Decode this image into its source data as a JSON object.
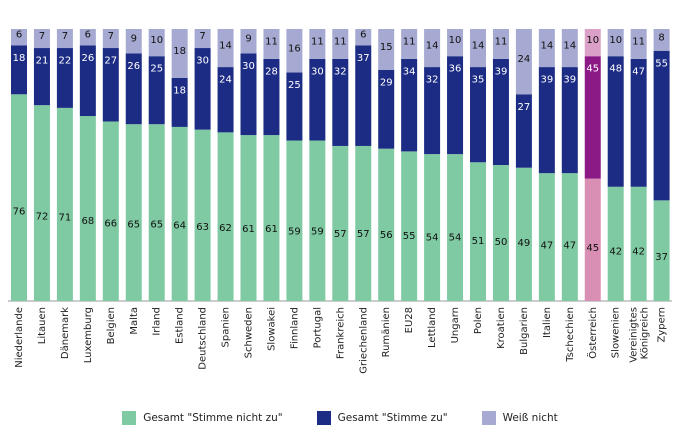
{
  "chart_data": {
    "type": "bar",
    "stacked": true,
    "orientation": "vertical",
    "categories": [
      "Niederlande",
      "Litauen",
      "Dänemark",
      "Luxemburg",
      "Belgien",
      "Malta",
      "Irland",
      "Estland",
      "Deutschland",
      "Spanien",
      "Schweden",
      "Slowakei",
      "Finnland",
      "Portugal",
      "Frankreich",
      "Griechenland",
      "Rumänien",
      "EU28",
      "Lettland",
      "Ungarn",
      "Polen",
      "Kroatien",
      "Bulgarien",
      "Italien",
      "Tschechien",
      "Österreich",
      "Slowenien",
      "Vereinigtes Königreich",
      "Zypern"
    ],
    "series": [
      {
        "name": "Gesamt \"Stimme nicht zu\"",
        "color": "#7fcaa3",
        "highlight_color": "#d98fb3",
        "values": [
          76,
          72,
          71,
          68,
          66,
          65,
          65,
          64,
          63,
          62,
          61,
          61,
          59,
          59,
          57,
          57,
          56,
          55,
          54,
          54,
          51,
          50,
          49,
          47,
          47,
          45,
          42,
          42,
          37
        ]
      },
      {
        "name": "Gesamt \"Stimme zu\"",
        "color": "#1c2c85",
        "highlight_color": "#8b1a86",
        "values": [
          18,
          21,
          22,
          26,
          27,
          26,
          25,
          18,
          30,
          24,
          30,
          28,
          25,
          30,
          32,
          37,
          29,
          34,
          32,
          36,
          35,
          39,
          27,
          39,
          39,
          45,
          48,
          47,
          55
        ]
      },
      {
        "name": "Weiß nicht",
        "color": "#a6a9d1",
        "highlight_color": "#dba0c7",
        "values": [
          6,
          7,
          7,
          6,
          7,
          9,
          10,
          18,
          7,
          14,
          9,
          11,
          16,
          11,
          11,
          6,
          15,
          11,
          14,
          10,
          14,
          11,
          24,
          14,
          14,
          10,
          10,
          11,
          8
        ]
      }
    ],
    "highlight_category": "Österreich",
    "ylim": [
      0,
      100
    ],
    "legend_position": "bottom",
    "grid": false
  }
}
